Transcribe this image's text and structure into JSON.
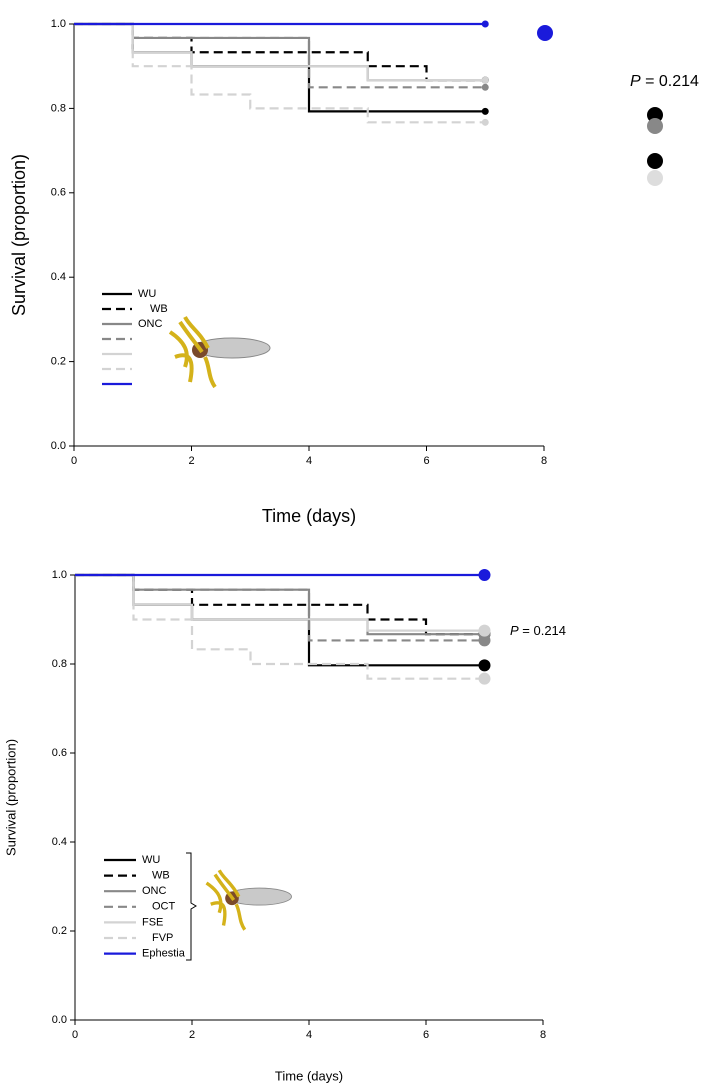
{
  "chart_data": [
    {
      "type": "line",
      "step": true,
      "xlabel": "Time (days)",
      "ylabel": "Survival (proportion)",
      "annotation": "P = 0.214",
      "xlim": [
        0,
        8
      ],
      "xticks": [
        0,
        2,
        4,
        6,
        8
      ],
      "ylim": [
        0,
        1
      ],
      "yticks": [
        {
          "value": 0,
          "label": "0.0"
        },
        0.2,
        0.4,
        0.6,
        0.8,
        {
          "value": 1,
          "label": "1.0"
        }
      ],
      "series": [
        {
          "name": "WU",
          "color": "#000000",
          "dashed": false,
          "x": [
            0,
            1,
            2,
            4,
            7
          ],
          "values": [
            1,
            0.933,
            0.9,
            0.793,
            0.793
          ]
        },
        {
          "name": "WB",
          "color": "#000000",
          "dashed": true,
          "x": [
            0,
            1,
            2,
            5,
            6,
            7
          ],
          "values": [
            1,
            0.967,
            0.933,
            0.9,
            0.867,
            0.867
          ]
        },
        {
          "name": "ONC",
          "color": "#888888",
          "dashed": false,
          "x": [
            0,
            1,
            4,
            5,
            7
          ],
          "values": [
            1,
            0.967,
            0.9,
            0.867,
            0.867
          ]
        },
        {
          "color": "#888888",
          "dashed": true,
          "x": [
            0,
            1,
            4,
            7
          ],
          "values": [
            1,
            0.967,
            0.85,
            0.85
          ]
        },
        {
          "color": "#d3d3d3",
          "dashed": false,
          "x": [
            0,
            1,
            2,
            5,
            7
          ],
          "values": [
            1,
            0.933,
            0.9,
            0.867,
            0.867
          ]
        },
        {
          "color": "#d3d3d3",
          "dashed": true,
          "x": [
            0,
            1,
            2,
            3,
            5,
            7
          ],
          "values": [
            1,
            0.9,
            0.833,
            0.8,
            0.767,
            0.767
          ]
        },
        {
          "color": "#1a1adb",
          "dashed": false,
          "x": [
            0,
            7
          ],
          "values": [
            1,
            1
          ]
        }
      ]
    },
    {
      "type": "line",
      "step": true,
      "xlabel": "Time (days)",
      "ylabel": "Survival (proportion)",
      "annotation": "P = 0.214",
      "xlim": [
        0,
        8
      ],
      "xticks": [
        0,
        2,
        4,
        6,
        8
      ],
      "ylim": [
        0,
        1
      ],
      "yticks": [
        {
          "value": 0,
          "label": "0.0"
        },
        0.2,
        0.4,
        0.6,
        0.8,
        {
          "value": 1,
          "label": "1.0"
        }
      ],
      "series": [
        {
          "name": "WU",
          "color": "#000000",
          "dashed": false,
          "x": [
            0,
            1,
            2,
            4,
            7
          ],
          "values": [
            1,
            0.933,
            0.9,
            0.797,
            0.797
          ]
        },
        {
          "name": "WB",
          "color": "#000000",
          "dashed": true,
          "x": [
            0,
            1,
            2,
            5,
            6,
            7
          ],
          "values": [
            1,
            0.967,
            0.933,
            0.9,
            0.867,
            0.867
          ]
        },
        {
          "name": "ONC",
          "color": "#888888",
          "dashed": false,
          "x": [
            0,
            1,
            4,
            5,
            7
          ],
          "values": [
            1,
            0.967,
            0.9,
            0.867,
            0.867
          ]
        },
        {
          "name": "OCT",
          "color": "#888888",
          "dashed": true,
          "x": [
            0,
            1,
            4,
            7
          ],
          "values": [
            1,
            0.967,
            0.853,
            0.853
          ]
        },
        {
          "name": "FSE",
          "color": "#d3d3d3",
          "dashed": false,
          "x": [
            0,
            1,
            2,
            5,
            7
          ],
          "values": [
            1,
            0.933,
            0.9,
            0.875,
            0.875
          ]
        },
        {
          "name": "FVP",
          "color": "#d3d3d3",
          "dashed": true,
          "x": [
            0,
            1,
            2,
            3,
            5,
            7
          ],
          "values": [
            1,
            0.9,
            0.833,
            0.8,
            0.767,
            0.767
          ]
        },
        {
          "name": "Ephestia",
          "color": "#1a1adb",
          "dashed": false,
          "x": [
            0,
            7
          ],
          "values": [
            1,
            1
          ]
        }
      ]
    }
  ]
}
